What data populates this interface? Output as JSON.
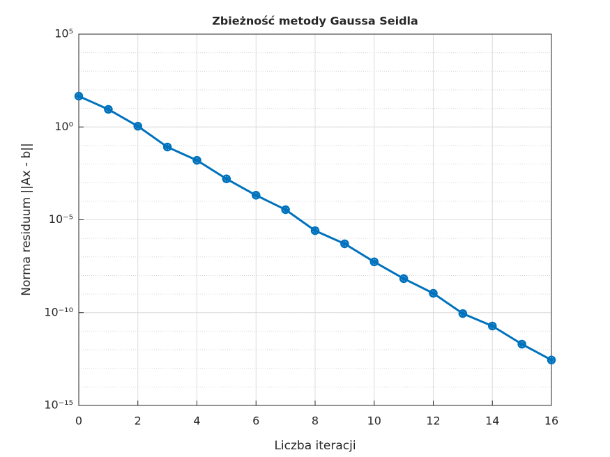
{
  "chart_data": {
    "type": "line",
    "title": "Zbieżność metody Gaussa Seidla",
    "x_label": "Liczba iteracji",
    "y_label": "Norma residuum ||Ax - b||",
    "x": [
      0,
      1,
      2,
      3,
      4,
      5,
      6,
      7,
      8,
      9,
      10,
      11,
      12,
      13,
      14,
      15,
      16
    ],
    "values": [
      45.7,
      8.9,
      1.1,
      0.083,
      0.016,
      0.0016,
      0.00021,
      3.5e-05,
      2.6e-06,
      5.1e-07,
      5.4e-08,
      6.8e-09,
      1.1e-09,
      8.9e-11,
      1.9e-11,
      2e-12,
      2.8e-13
    ],
    "color": "#0072bd",
    "xlim": [
      0,
      16
    ],
    "xticks": [
      0,
      2,
      4,
      6,
      8,
      10,
      12,
      14,
      16
    ],
    "ylim": [
      1e-15,
      100000
    ],
    "yticks": [
      {
        "value": 1e-15,
        "label": "10⁻¹⁵"
      },
      {
        "value": 1e-10,
        "label": "10⁻¹⁰"
      },
      {
        "value": 1e-05,
        "label": "10⁻⁵"
      },
      {
        "value": 1,
        "label": "10⁰"
      },
      {
        "value": 100000,
        "label": "10⁵"
      }
    ],
    "log_y": true,
    "grid": true,
    "minor_grid": true
  }
}
